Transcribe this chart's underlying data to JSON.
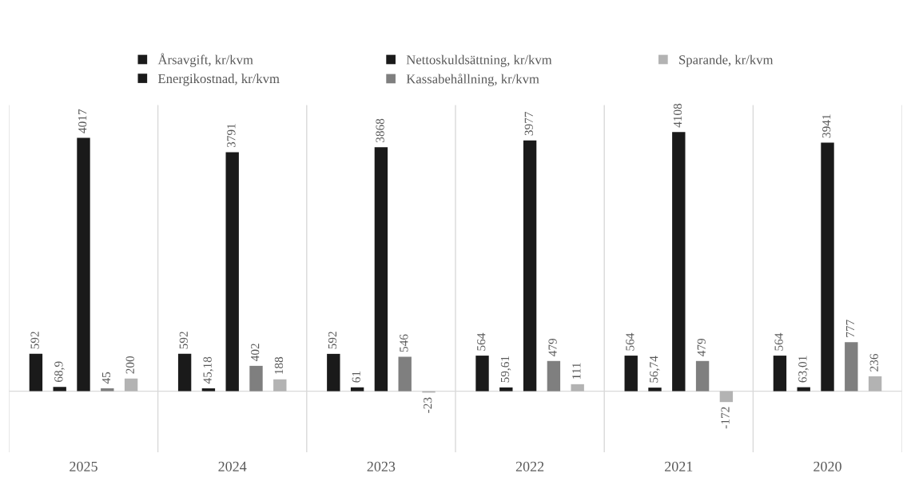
{
  "chart_data": {
    "type": "bar",
    "categories": [
      "2025",
      "2024",
      "2023",
      "2022",
      "2021",
      "2020"
    ],
    "series": [
      {
        "name": "Årsavgift, kr/kvm",
        "color": "#1a1a1a",
        "values": [
          592,
          592,
          592,
          564,
          564,
          564
        ],
        "value_labels": [
          "592",
          "592",
          "592",
          "564",
          "564",
          "564"
        ]
      },
      {
        "name": "Energikostnad, kr/kvm",
        "color": "#1a1a1a",
        "values": [
          68.9,
          45.18,
          61,
          59.61,
          56.74,
          63.01
        ],
        "value_labels": [
          "68,9",
          "45,18",
          "61",
          "59,61",
          "56,74",
          "63,01"
        ]
      },
      {
        "name": "Nettoskuldsättning, kr/kvm",
        "color": "#1a1a1a",
        "values": [
          4017,
          3791,
          3868,
          3977,
          4108,
          3941
        ],
        "value_labels": [
          "4017",
          "3791",
          "3868",
          "3977",
          "4108",
          "3941"
        ]
      },
      {
        "name": "Kassabehållning, kr/kvm",
        "color": "#7f7f7f",
        "values": [
          45,
          402,
          546,
          479,
          479,
          777
        ],
        "value_labels": [
          "45",
          "402",
          "546",
          "479",
          "479",
          "777"
        ]
      },
      {
        "name": "Sparande, kr/kvm",
        "color": "#b3b3b3",
        "values": [
          200,
          188,
          -23,
          111,
          -172,
          236
        ],
        "value_labels": [
          "200",
          "188",
          "-23",
          "111",
          "-172",
          "236"
        ]
      }
    ],
    "grid": "x",
    "legend": "top"
  }
}
